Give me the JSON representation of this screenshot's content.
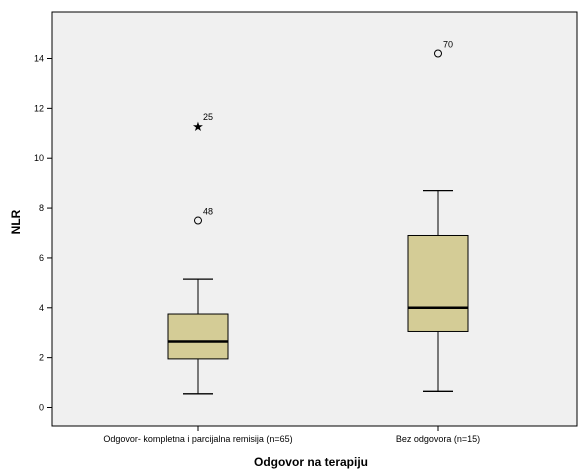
{
  "chart_data": {
    "type": "boxplot",
    "xlabel": "Odgovor na terapiju",
    "ylabel": "NLR",
    "ylim": [
      -0.8,
      15.8
    ],
    "y_ticks": [
      0,
      2,
      4,
      6,
      8,
      10,
      12,
      14
    ],
    "grid": false,
    "box_fill": "#d4cc96",
    "plot_background": "#f0f0f0",
    "groups": [
      {
        "label": "Odgovor- kompletna i parcijalna remisija (n=65)",
        "min": 0.55,
        "q1": 1.95,
        "median": 2.65,
        "q3": 3.75,
        "max": 5.15,
        "outliers": [
          {
            "value": 7.5,
            "label": "48",
            "symbol": "circle"
          },
          {
            "value": 11.3,
            "label": "25",
            "symbol": "star"
          }
        ]
      },
      {
        "label": "Bez odgovora (n=15)",
        "min": 0.65,
        "q1": 3.05,
        "median": 4.0,
        "q3": 6.9,
        "max": 8.7,
        "outliers": [
          {
            "value": 14.2,
            "label": "70",
            "symbol": "circle"
          }
        ]
      }
    ]
  }
}
